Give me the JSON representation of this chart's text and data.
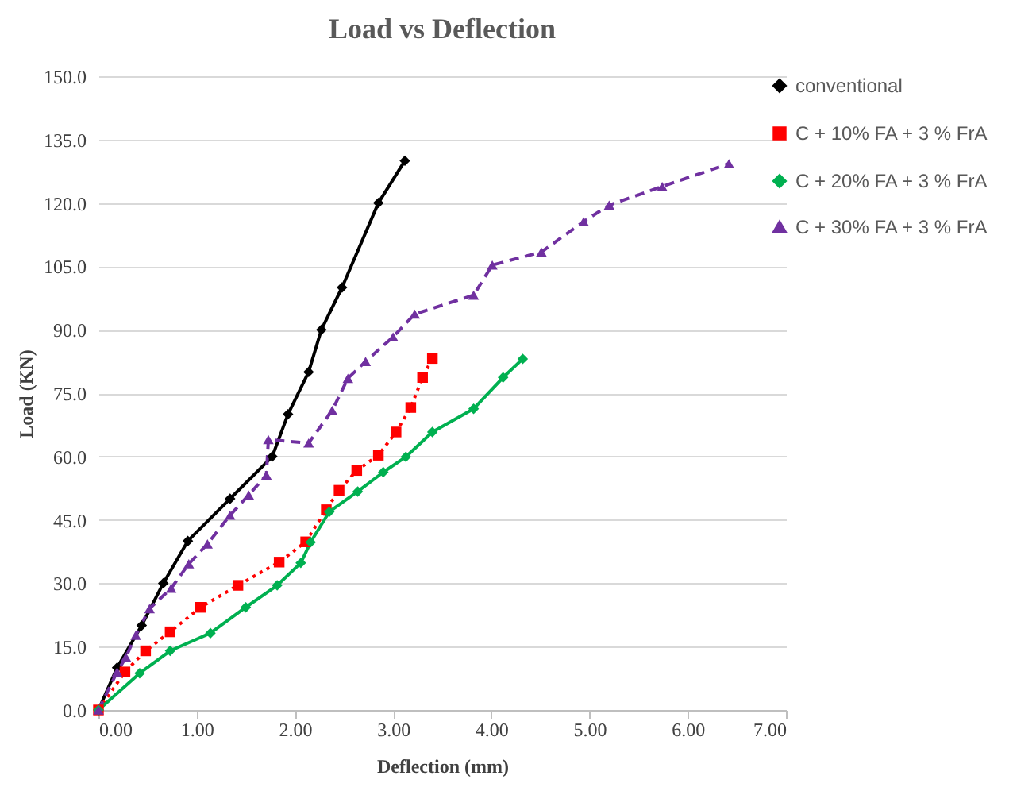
{
  "chart_data": {
    "type": "line",
    "title": "Load vs Deflection",
    "xlabel": "Deflection (mm)",
    "ylabel": "Load (KN)",
    "xlim": [
      0,
      7
    ],
    "ylim": [
      0,
      150
    ],
    "xticks": [
      {
        "value": 0,
        "label": "0.00"
      },
      {
        "value": 1,
        "label": "1.00"
      },
      {
        "value": 2,
        "label": "2.00"
      },
      {
        "value": 3,
        "label": "3.00"
      },
      {
        "value": 4,
        "label": "4.00"
      },
      {
        "value": 5,
        "label": "5.00"
      },
      {
        "value": 6,
        "label": "6.00"
      },
      {
        "value": 7,
        "label": "7.00"
      }
    ],
    "yticks": [
      {
        "value": 0,
        "label": "0.0"
      },
      {
        "value": 15,
        "label": "15.0"
      },
      {
        "value": 30,
        "label": "30.0"
      },
      {
        "value": 45,
        "label": "45.0"
      },
      {
        "value": 60,
        "label": "60.0"
      },
      {
        "value": 75,
        "label": "75.0"
      },
      {
        "value": 90,
        "label": "90.0"
      },
      {
        "value": 105,
        "label": "105.0"
      },
      {
        "value": 120,
        "label": "120.0"
      },
      {
        "value": 135,
        "label": "135.0"
      },
      {
        "value": 150,
        "label": "150.0"
      }
    ],
    "grid": "y",
    "legend": "right",
    "series": [
      {
        "name": "conventional",
        "color": "#000000",
        "marker": "diamond",
        "line_style": "solid",
        "x": [
          0,
          0.19,
          0.44,
          0.66,
          0.91,
          1.34,
          1.77,
          1.93,
          2.14,
          2.27,
          2.48,
          2.85,
          3.12
        ],
        "values": [
          0,
          10,
          20,
          30,
          40,
          50,
          60,
          70,
          80,
          90,
          100,
          120,
          130
        ]
      },
      {
        "name": "C + 10% FA + 3 % FrA",
        "color": "#ff0000",
        "marker": "square",
        "line_style": "dotted",
        "x": [
          0,
          0.27,
          0.48,
          0.73,
          1.04,
          1.42,
          1.84,
          2.11,
          2.32,
          2.45,
          2.63,
          2.85,
          3.03,
          3.18,
          3.3,
          3.4
        ],
        "values": [
          0,
          9,
          14,
          18.5,
          24.3,
          29.5,
          35,
          39.8,
          47.4,
          52,
          56.7,
          60.3,
          65.8,
          71.6,
          78.7,
          83.2
        ]
      },
      {
        "name": "C + 20% FA + 3 % FrA",
        "color": "#00b050",
        "marker": "diamond",
        "line_style": "solid",
        "x": [
          0,
          0.42,
          0.73,
          1.14,
          1.5,
          1.82,
          2.06,
          2.16,
          2.35,
          2.64,
          2.9,
          3.13,
          3.4,
          3.82,
          4.12,
          4.32
        ],
        "values": [
          0,
          8.7,
          14,
          18.2,
          24.3,
          29.5,
          34.8,
          39.7,
          46.9,
          51.7,
          56.3,
          59.9,
          65.8,
          71.3,
          78.7,
          83.1
        ]
      },
      {
        "name": "C + 30% FA + 3 % FrA",
        "color": "#7030a0",
        "marker": "triangle",
        "line_style": "dashed",
        "x": [
          0,
          0.19,
          0.28,
          0.38,
          0.52,
          0.74,
          0.92,
          1.11,
          1.34,
          1.53,
          1.71,
          1.73,
          2.14,
          2.38,
          2.54,
          2.72,
          3.0,
          3.22,
          3.82,
          4.01,
          4.51,
          4.94,
          5.2,
          5.74,
          6.42
        ],
        "values": [
          0,
          9,
          12.5,
          17.7,
          24,
          28.8,
          34.6,
          39.3,
          46.1,
          50.9,
          55.6,
          64,
          63.2,
          70.9,
          78.5,
          82.5,
          88.3,
          93.7,
          98.2,
          105.3,
          108.4,
          115.6,
          119.5,
          123.9,
          129.3
        ]
      }
    ]
  }
}
